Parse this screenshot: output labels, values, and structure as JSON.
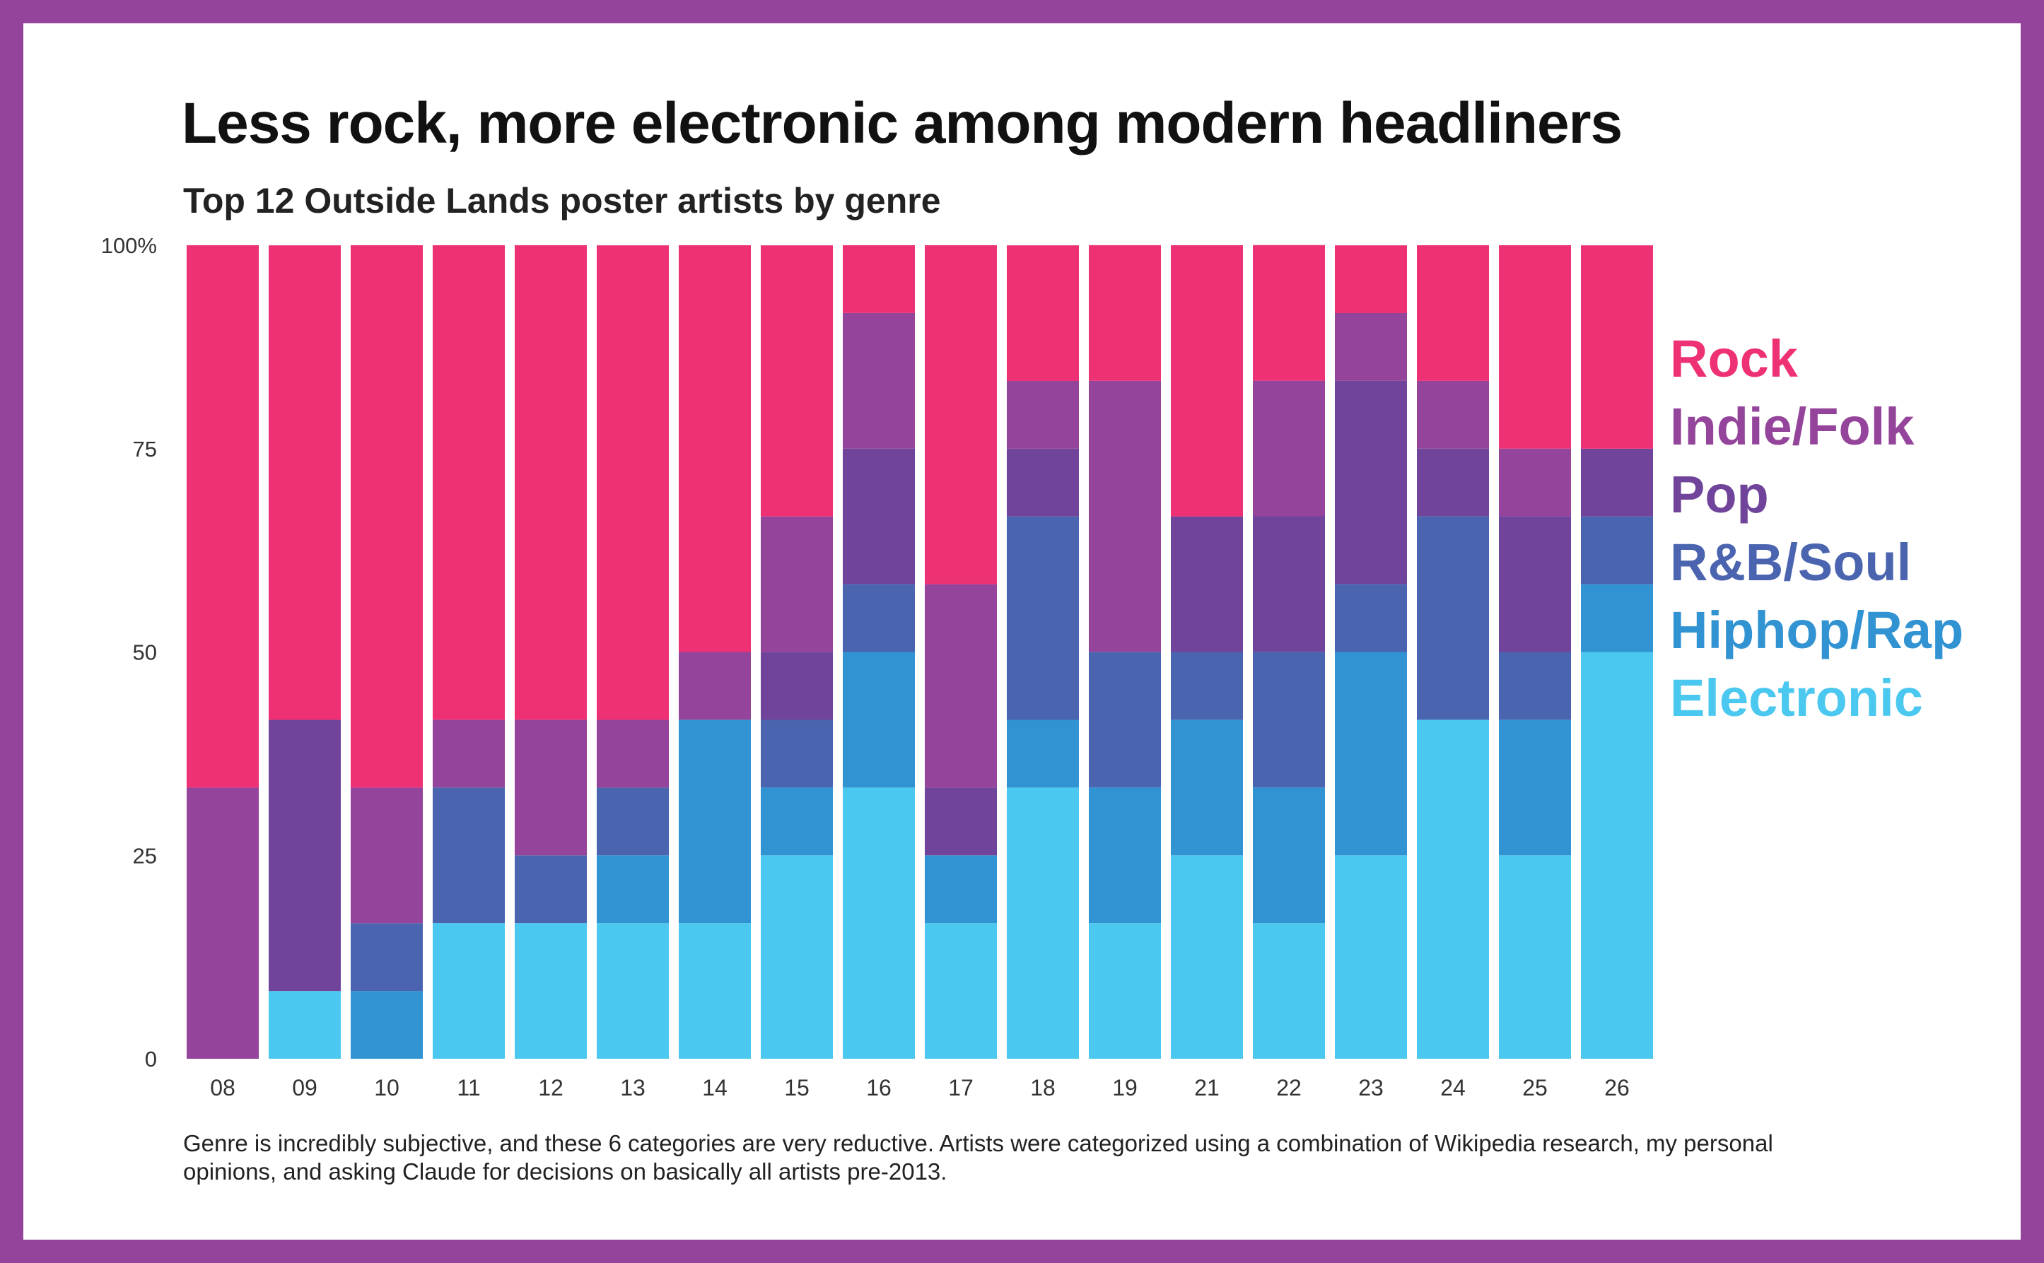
{
  "title": "Less rock, more electronic among modern headliners",
  "subtitle": "Top 12 Outside Lands poster artists by genre",
  "note": "Genre is incredibly subjective, and these 6 categories are very reductive. Artists were categorized using a combination of Wikipedia research, my personal opinions, and asking Claude for decisions on basically all artists pre-2013.",
  "colors": {
    "frame": "#94449a",
    "Electronic": "#4bc8ef",
    "Hiphop/Rap": "#3193d2",
    "R&B/Soul": "#4a64af",
    "Pop": "#70449b",
    "Indie/Folk": "#94449a",
    "Rock": "#ee3174"
  },
  "chart_data": {
    "type": "bar",
    "stacked": true,
    "categories": [
      "08",
      "09",
      "10",
      "11",
      "12",
      "13",
      "14",
      "15",
      "16",
      "17",
      "18",
      "19",
      "21",
      "22",
      "23",
      "24",
      "25",
      "26"
    ],
    "ylim": [
      0,
      100
    ],
    "yticks": [
      0,
      25,
      50,
      75,
      100
    ],
    "ytick_labels": [
      "0",
      "25",
      "50",
      "75",
      "100%"
    ],
    "legend_position": "right",
    "series": [
      {
        "name": "Electronic",
        "values": [
          0,
          8.33,
          0,
          16.67,
          16.67,
          16.67,
          16.67,
          25,
          33.33,
          16.67,
          33.33,
          16.67,
          25,
          16.67,
          25,
          41.67,
          25,
          50
        ]
      },
      {
        "name": "Hiphop/Rap",
        "values": [
          0,
          0,
          8.33,
          0,
          0,
          8.33,
          25,
          8.33,
          16.67,
          8.33,
          8.33,
          16.67,
          16.67,
          16.67,
          25,
          0,
          16.67,
          8.33
        ]
      },
      {
        "name": "R&B/Soul",
        "values": [
          0,
          0,
          8.33,
          16.67,
          8.33,
          8.33,
          0,
          8.33,
          8.33,
          0,
          25,
          16.67,
          8.33,
          16.67,
          8.33,
          25,
          8.33,
          8.33
        ]
      },
      {
        "name": "Pop",
        "values": [
          0,
          33.33,
          0,
          0,
          0,
          0,
          0,
          8.33,
          16.67,
          8.33,
          8.33,
          0,
          16.67,
          16.67,
          25,
          8.33,
          16.67,
          8.33
        ]
      },
      {
        "name": "Indie/Folk",
        "values": [
          33.33,
          0,
          16.67,
          8.33,
          16.67,
          8.33,
          8.33,
          16.67,
          16.67,
          25,
          8.33,
          33.33,
          0,
          16.67,
          8.33,
          8.33,
          8.33,
          0
        ]
      },
      {
        "name": "Rock",
        "values": [
          66.67,
          58.33,
          66.67,
          58.33,
          58.33,
          58.33,
          50,
          33.33,
          8.33,
          41.67,
          16.67,
          16.67,
          33.33,
          16.67,
          8.33,
          16.67,
          25,
          25
        ]
      }
    ]
  }
}
